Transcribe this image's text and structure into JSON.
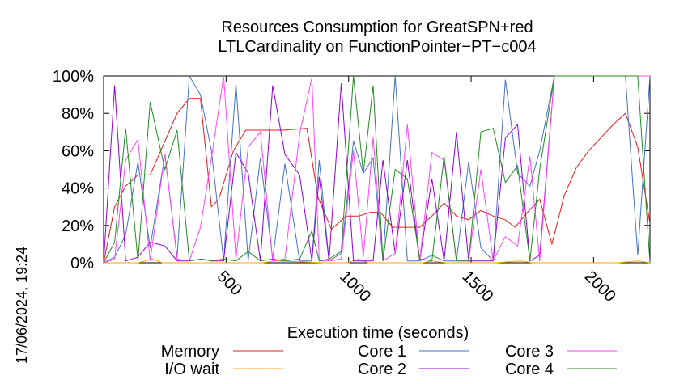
{
  "chart_data": {
    "type": "line",
    "title": [
      "Resources Consumption for GreatSPN+red",
      "LTLCardinality on FunctionPointer−PT−c004"
    ],
    "xlabel": "Execution time (seconds)",
    "timestamp": "17/06/2024, 19:24",
    "xlim": [
      0,
      2230
    ],
    "ylim": [
      0,
      100
    ],
    "x_ticks": [
      500,
      1000,
      1500,
      2000
    ],
    "y_ticks": [
      0,
      20,
      40,
      60,
      80,
      100
    ],
    "y_tick_labels": [
      "0%",
      "20%",
      "40%",
      "60%",
      "80%",
      "100%"
    ],
    "grid": false,
    "legend_position": "bottom",
    "series": [
      {
        "name": "Memory",
        "color": "#e41a1c",
        "data": [
          [
            0,
            0
          ],
          [
            45,
            30
          ],
          [
            90,
            41
          ],
          [
            140,
            47
          ],
          [
            190,
            47
          ],
          [
            250,
            65
          ],
          [
            300,
            80
          ],
          [
            350,
            88
          ],
          [
            395,
            88
          ],
          [
            440,
            30
          ],
          [
            470,
            34
          ],
          [
            530,
            60
          ],
          [
            580,
            71
          ],
          [
            650,
            71
          ],
          [
            730,
            71
          ],
          [
            830,
            72
          ],
          [
            875,
            35
          ],
          [
            930,
            18
          ],
          [
            990,
            25
          ],
          [
            1040,
            25
          ],
          [
            1090,
            27
          ],
          [
            1130,
            27
          ],
          [
            1180,
            19
          ],
          [
            1230,
            19
          ],
          [
            1290,
            19
          ],
          [
            1340,
            25
          ],
          [
            1390,
            32
          ],
          [
            1440,
            25
          ],
          [
            1490,
            23
          ],
          [
            1540,
            28
          ],
          [
            1590,
            25
          ],
          [
            1640,
            23
          ],
          [
            1680,
            19
          ],
          [
            1730,
            27
          ],
          [
            1780,
            34
          ],
          [
            1830,
            10
          ],
          [
            1880,
            36
          ],
          [
            1930,
            51
          ],
          [
            1980,
            60
          ],
          [
            2030,
            67
          ],
          [
            2080,
            74
          ],
          [
            2130,
            80
          ],
          [
            2180,
            62
          ],
          [
            2230,
            21
          ]
        ]
      },
      {
        "name": "I/O wait",
        "color": "#ffa500",
        "data": [
          [
            0,
            0
          ],
          [
            100,
            0
          ],
          [
            140,
            0
          ],
          [
            200,
            2
          ],
          [
            240,
            0
          ],
          [
            400,
            0
          ],
          [
            450,
            0
          ],
          [
            650,
            0
          ],
          [
            700,
            1
          ],
          [
            900,
            0
          ],
          [
            1000,
            0
          ],
          [
            1040,
            2
          ],
          [
            1080,
            0
          ],
          [
            1300,
            0
          ],
          [
            1340,
            1
          ],
          [
            1400,
            0
          ],
          [
            1600,
            0
          ],
          [
            1700,
            1
          ],
          [
            1750,
            0
          ],
          [
            2100,
            0
          ],
          [
            2180,
            1
          ],
          [
            2230,
            0
          ]
        ]
      },
      {
        "name": "Core 1",
        "color": "#4472c4",
        "data": [
          [
            0,
            0
          ],
          [
            45,
            3
          ],
          [
            90,
            15
          ],
          [
            140,
            54
          ],
          [
            190,
            8
          ],
          [
            250,
            58
          ],
          [
            300,
            3
          ],
          [
            350,
            100
          ],
          [
            395,
            90
          ],
          [
            440,
            60
          ],
          [
            490,
            1
          ],
          [
            540,
            96
          ],
          [
            590,
            1
          ],
          [
            640,
            56
          ],
          [
            690,
            2
          ],
          [
            740,
            53
          ],
          [
            800,
            1
          ],
          [
            850,
            1
          ],
          [
            880,
            55
          ],
          [
            920,
            1
          ],
          [
            970,
            5
          ],
          [
            1020,
            65
          ],
          [
            1060,
            48
          ],
          [
            1100,
            56
          ],
          [
            1140,
            1
          ],
          [
            1190,
            100
          ],
          [
            1240,
            1
          ],
          [
            1290,
            1
          ],
          [
            1340,
            4
          ],
          [
            1390,
            1
          ],
          [
            1440,
            1
          ],
          [
            1490,
            54
          ],
          [
            1540,
            8
          ],
          [
            1590,
            1
          ],
          [
            1640,
            98
          ],
          [
            1690,
            48
          ],
          [
            1740,
            41
          ],
          [
            1780,
            60
          ],
          [
            1840,
            100
          ],
          [
            1880,
            100
          ],
          [
            1930,
            100
          ],
          [
            1980,
            100
          ],
          [
            2080,
            100
          ],
          [
            2130,
            100
          ],
          [
            2180,
            4
          ],
          [
            2230,
            100
          ]
        ]
      },
      {
        "name": "Core 2",
        "color": "#9400d3",
        "data": [
          [
            0,
            0
          ],
          [
            45,
            95
          ],
          [
            90,
            1
          ],
          [
            140,
            3
          ],
          [
            190,
            11
          ],
          [
            250,
            9
          ],
          [
            300,
            1
          ],
          [
            350,
            1
          ],
          [
            400,
            2
          ],
          [
            440,
            1
          ],
          [
            490,
            1
          ],
          [
            540,
            59
          ],
          [
            590,
            48
          ],
          [
            640,
            1
          ],
          [
            690,
            95
          ],
          [
            740,
            58
          ],
          [
            800,
            47
          ],
          [
            850,
            1
          ],
          [
            880,
            46
          ],
          [
            920,
            1
          ],
          [
            970,
            96
          ],
          [
            1020,
            1
          ],
          [
            1060,
            1
          ],
          [
            1100,
            1
          ],
          [
            1140,
            55
          ],
          [
            1190,
            5
          ],
          [
            1240,
            55
          ],
          [
            1290,
            1
          ],
          [
            1340,
            45
          ],
          [
            1390,
            1
          ],
          [
            1440,
            70
          ],
          [
            1490,
            1
          ],
          [
            1540,
            1
          ],
          [
            1590,
            1
          ],
          [
            1640,
            67
          ],
          [
            1690,
            74
          ],
          [
            1740,
            1
          ],
          [
            1780,
            4
          ],
          [
            1840,
            100
          ],
          [
            1880,
            100
          ],
          [
            1930,
            100
          ],
          [
            2080,
            100
          ],
          [
            2130,
            100
          ],
          [
            2180,
            100
          ],
          [
            2230,
            100
          ]
        ]
      },
      {
        "name": "Core 3",
        "color": "#ff44ff",
        "data": [
          [
            0,
            0
          ],
          [
            45,
            2
          ],
          [
            90,
            55
          ],
          [
            140,
            66
          ],
          [
            190,
            1
          ],
          [
            250,
            58
          ],
          [
            300,
            2
          ],
          [
            350,
            1
          ],
          [
            395,
            19
          ],
          [
            440,
            56
          ],
          [
            490,
            100
          ],
          [
            540,
            2
          ],
          [
            590,
            62
          ],
          [
            640,
            70
          ],
          [
            690,
            1
          ],
          [
            740,
            2
          ],
          [
            800,
            69
          ],
          [
            850,
            99
          ],
          [
            880,
            1
          ],
          [
            920,
            1
          ],
          [
            970,
            2
          ],
          [
            1020,
            60
          ],
          [
            1060,
            3
          ],
          [
            1100,
            67
          ],
          [
            1140,
            1
          ],
          [
            1190,
            5
          ],
          [
            1240,
            74
          ],
          [
            1290,
            1
          ],
          [
            1340,
            59
          ],
          [
            1390,
            55
          ],
          [
            1440,
            1
          ],
          [
            1490,
            1
          ],
          [
            1540,
            50
          ],
          [
            1590,
            1
          ],
          [
            1640,
            14
          ],
          [
            1690,
            9
          ],
          [
            1740,
            57
          ],
          [
            1780,
            1
          ],
          [
            1840,
            100
          ],
          [
            1880,
            100
          ],
          [
            1930,
            100
          ],
          [
            2080,
            100
          ],
          [
            2130,
            100
          ],
          [
            2180,
            100
          ],
          [
            2230,
            100
          ]
        ]
      },
      {
        "name": "Core 4",
        "color": "#228b22",
        "data": [
          [
            0,
            0
          ],
          [
            45,
            11
          ],
          [
            90,
            72
          ],
          [
            140,
            1
          ],
          [
            190,
            86
          ],
          [
            250,
            50
          ],
          [
            300,
            71
          ],
          [
            350,
            1
          ],
          [
            400,
            2
          ],
          [
            440,
            1
          ],
          [
            490,
            2
          ],
          [
            540,
            1
          ],
          [
            590,
            6
          ],
          [
            640,
            1
          ],
          [
            690,
            2
          ],
          [
            740,
            1
          ],
          [
            800,
            2
          ],
          [
            850,
            17
          ],
          [
            880,
            1
          ],
          [
            920,
            2
          ],
          [
            970,
            6
          ],
          [
            1020,
            100
          ],
          [
            1060,
            48
          ],
          [
            1100,
            95
          ],
          [
            1140,
            1
          ],
          [
            1190,
            50
          ],
          [
            1240,
            45
          ],
          [
            1290,
            2
          ],
          [
            1340,
            1
          ],
          [
            1390,
            57
          ],
          [
            1440,
            1
          ],
          [
            1490,
            1
          ],
          [
            1540,
            70
          ],
          [
            1590,
            72
          ],
          [
            1640,
            43
          ],
          [
            1690,
            52
          ],
          [
            1740,
            1
          ],
          [
            1780,
            50
          ],
          [
            1840,
            100
          ],
          [
            1880,
            100
          ],
          [
            1930,
            100
          ],
          [
            2080,
            100
          ],
          [
            2130,
            100
          ],
          [
            2180,
            100
          ],
          [
            2230,
            0
          ]
        ]
      }
    ]
  }
}
